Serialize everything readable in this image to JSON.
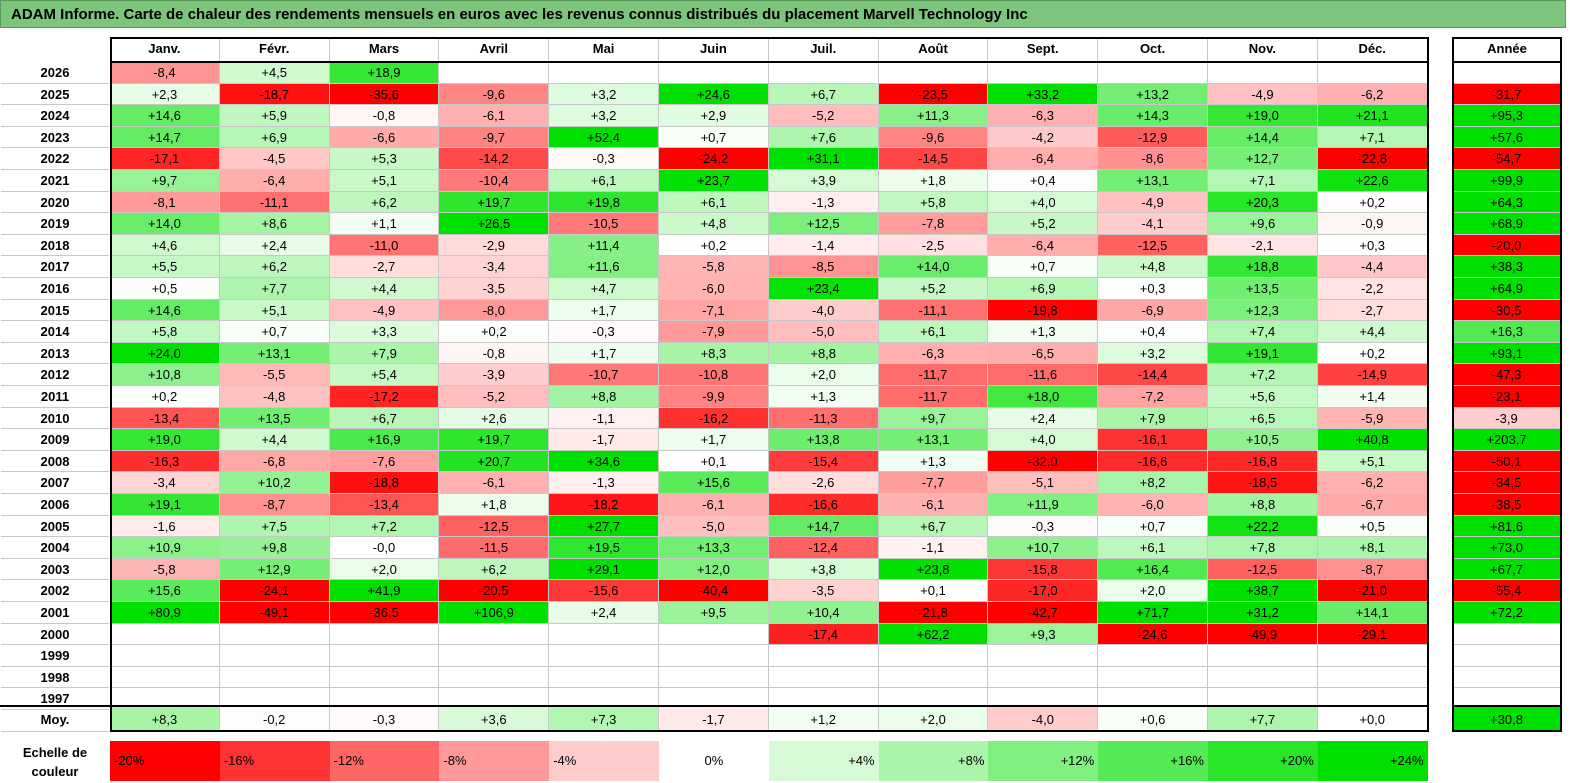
{
  "title": "ADAM Informe. Carte de chaleur des rendements mensuels en euros avec les revenus connus distribués du placement Marvell Technology Inc",
  "chart_data": {
    "type": "heatmap",
    "months": [
      "Janv.",
      "Févr.",
      "Mars",
      "Avril",
      "Mai",
      "Juin",
      "Juil.",
      "Août",
      "Sept.",
      "Oct.",
      "Nov.",
      "Déc."
    ],
    "year_header": "Année",
    "rows": [
      {
        "year": "2026",
        "values": [
          "-8,4",
          "+4,5",
          "+18,9",
          null,
          null,
          null,
          null,
          null,
          null,
          null,
          null,
          null
        ],
        "annual": null
      },
      {
        "year": "2025",
        "values": [
          "+2,3",
          "-18,7",
          "-35,6",
          "-9,6",
          "+3,2",
          "+24,6",
          "+6,7",
          "-23,5",
          "+33,2",
          "+13,2",
          "-4,9",
          "-6,2"
        ],
        "annual": "-31,7"
      },
      {
        "year": "2024",
        "values": [
          "+14,6",
          "+5,9",
          "-0,8",
          "-6,1",
          "+3,2",
          "+2,9",
          "-5,2",
          "+11,3",
          "-6,3",
          "+14,3",
          "+19,0",
          "+21,1"
        ],
        "annual": "+95,3"
      },
      {
        "year": "2023",
        "values": [
          "+14,7",
          "+6,9",
          "-6,6",
          "-9,7",
          "+52,4",
          "+0,7",
          "+7,6",
          "-9,6",
          "-4,2",
          "-12,9",
          "+14,4",
          "+7,1"
        ],
        "annual": "+57,6"
      },
      {
        "year": "2022",
        "values": [
          "-17,1",
          "-4,5",
          "+5,3",
          "-14,2",
          "-0,3",
          "-24,2",
          "+31,1",
          "-14,5",
          "-6,4",
          "-8,6",
          "+12,7",
          "-22,8"
        ],
        "annual": "-54,7"
      },
      {
        "year": "2021",
        "values": [
          "+9,7",
          "-6,4",
          "+5,1",
          "-10,4",
          "+6,1",
          "+23,7",
          "+3,9",
          "+1,8",
          "+0,4",
          "+13,1",
          "+7,1",
          "+22,6"
        ],
        "annual": "+99,9"
      },
      {
        "year": "2020",
        "values": [
          "-8,1",
          "-11,1",
          "+6,2",
          "+19,7",
          "+19,8",
          "+6,1",
          "-1,3",
          "+5,8",
          "+4,0",
          "-4,9",
          "+20,3",
          "+0,2"
        ],
        "annual": "+64,3"
      },
      {
        "year": "2019",
        "values": [
          "+14,0",
          "+8,6",
          "+1,1",
          "+26,5",
          "-10,5",
          "+4,8",
          "+12,5",
          "-7,8",
          "+5,2",
          "-4,1",
          "+9,6",
          "-0,9"
        ],
        "annual": "+68,9"
      },
      {
        "year": "2018",
        "values": [
          "+4,6",
          "+2,4",
          "-11,0",
          "-2,9",
          "+11,4",
          "+0,2",
          "-1,4",
          "-2,5",
          "-6,4",
          "-12,5",
          "-2,1",
          "+0,3"
        ],
        "annual": "-20,0"
      },
      {
        "year": "2017",
        "values": [
          "+5,5",
          "+6,2",
          "-2,7",
          "-3,4",
          "+11,6",
          "-5,8",
          "-8,5",
          "+14,0",
          "+0,7",
          "+4,8",
          "+18,8",
          "-4,4"
        ],
        "annual": "+38,3"
      },
      {
        "year": "2016",
        "values": [
          "+0,5",
          "+7,7",
          "+4,4",
          "-3,5",
          "+4,7",
          "-6,0",
          "+23,4",
          "+5,2",
          "+6,9",
          "+0,3",
          "+13,5",
          "-2,2"
        ],
        "annual": "+64,9"
      },
      {
        "year": "2015",
        "values": [
          "+14,6",
          "+5,1",
          "-4,9",
          "-8,0",
          "+1,7",
          "-7,1",
          "-4,0",
          "-11,1",
          "-19,8",
          "-6,9",
          "+12,3",
          "-2,7"
        ],
        "annual": "-30,5"
      },
      {
        "year": "2014",
        "values": [
          "+5,8",
          "+0,7",
          "+3,3",
          "+0,2",
          "-0,3",
          "-7,9",
          "-5,0",
          "+6,1",
          "+1,3",
          "+0,4",
          "+7,4",
          "+4,4"
        ],
        "annual": "+16,3"
      },
      {
        "year": "2013",
        "values": [
          "+24,0",
          "+13,1",
          "+7,9",
          "-0,8",
          "+1,7",
          "+8,3",
          "+8,8",
          "-6,3",
          "-6,5",
          "+3,2",
          "+19,1",
          "+0,2"
        ],
        "annual": "+93,1"
      },
      {
        "year": "2012",
        "values": [
          "+10,8",
          "-5,5",
          "+5,4",
          "-3,9",
          "-10,7",
          "-10,8",
          "+2,0",
          "-11,7",
          "-11,6",
          "-14,4",
          "+7,2",
          "-14,9"
        ],
        "annual": "-47,3"
      },
      {
        "year": "2011",
        "values": [
          "+0,2",
          "-4,8",
          "-17,2",
          "-5,2",
          "+8,8",
          "-9,9",
          "+1,3",
          "-11,7",
          "+18,0",
          "-7,2",
          "+5,6",
          "+1,4"
        ],
        "annual": "-23,1"
      },
      {
        "year": "2010",
        "values": [
          "-13,4",
          "+13,5",
          "+6,7",
          "+2,6",
          "-1,1",
          "-16,2",
          "-11,3",
          "+9,7",
          "+2,4",
          "+7,9",
          "+6,5",
          "-5,9"
        ],
        "annual": "-3,9"
      },
      {
        "year": "2009",
        "values": [
          "+19,0",
          "+4,4",
          "+16,9",
          "+19,7",
          "-1,7",
          "+1,7",
          "+13,8",
          "+13,1",
          "+4,0",
          "-16,1",
          "+10,5",
          "+40,8"
        ],
        "annual": "+203,7"
      },
      {
        "year": "2008",
        "values": [
          "-16,3",
          "-6,8",
          "-7,6",
          "+20,7",
          "+34,6",
          "+0,1",
          "-15,4",
          "+1,3",
          "-32,0",
          "-16,6",
          "-16,8",
          "+5,1"
        ],
        "annual": "-50,1"
      },
      {
        "year": "2007",
        "values": [
          "-3,4",
          "+10,2",
          "-18,8",
          "-6,1",
          "-1,3",
          "+15,6",
          "-2,6",
          "-7,7",
          "-5,1",
          "+8,2",
          "-18,5",
          "-6,2"
        ],
        "annual": "-34,5"
      },
      {
        "year": "2006",
        "values": [
          "+19,1",
          "-8,7",
          "-13,4",
          "+1,8",
          "-18,2",
          "-6,1",
          "-16,6",
          "-6,1",
          "+11,9",
          "-6,0",
          "+8,8",
          "-6,7"
        ],
        "annual": "-38,5"
      },
      {
        "year": "2005",
        "values": [
          "-1,6",
          "+7,5",
          "+7,2",
          "-12,5",
          "+27,7",
          "-5,0",
          "+14,7",
          "+6,7",
          "-0,3",
          "+0,7",
          "+22,2",
          "+0,5"
        ],
        "annual": "+81,6"
      },
      {
        "year": "2004",
        "values": [
          "+10,9",
          "+9,8",
          "-0,0",
          "-11,5",
          "+19,5",
          "+13,3",
          "-12,4",
          "-1,1",
          "+10,7",
          "+6,1",
          "+7,8",
          "+8,1"
        ],
        "annual": "+73,0"
      },
      {
        "year": "2003",
        "values": [
          "-5,8",
          "+12,9",
          "+2,0",
          "+6,2",
          "+29,1",
          "+12,0",
          "+3,8",
          "+23,8",
          "-15,8",
          "+16,4",
          "-12,5",
          "-8,7"
        ],
        "annual": "+67,7"
      },
      {
        "year": "2002",
        "values": [
          "+15,6",
          "-24,1",
          "+41,9",
          "-20,5",
          "-15,6",
          "-40,4",
          "-3,5",
          "+0,1",
          "-17,0",
          "+2,0",
          "+38,7",
          "-21,0"
        ],
        "annual": "-55,4"
      },
      {
        "year": "2001",
        "values": [
          "+80,9",
          "-49,1",
          "-36,5",
          "+106,9",
          "+2,4",
          "+9,5",
          "+10,4",
          "-21,8",
          "-42,7",
          "+71,7",
          "+31,2",
          "+14,1"
        ],
        "annual": "+72,2"
      },
      {
        "year": "2000",
        "values": [
          null,
          null,
          null,
          null,
          null,
          null,
          "-17,4",
          "+62,2",
          "+9,3",
          "-24,6",
          "-49,9",
          "-29,1"
        ],
        "annual": null
      },
      {
        "year": "1999",
        "values": [
          null,
          null,
          null,
          null,
          null,
          null,
          null,
          null,
          null,
          null,
          null,
          null
        ],
        "annual": null
      },
      {
        "year": "1998",
        "values": [
          null,
          null,
          null,
          null,
          null,
          null,
          null,
          null,
          null,
          null,
          null,
          null
        ],
        "annual": null
      },
      {
        "year": "1997",
        "values": [
          null,
          null,
          null,
          null,
          null,
          null,
          null,
          null,
          null,
          null,
          null,
          null
        ],
        "annual": null
      }
    ],
    "average": {
      "label": "Moy.",
      "values": [
        "+8,3",
        "-0,2",
        "-0,3",
        "+3,6",
        "+7,3",
        "-1,7",
        "+1,2",
        "+2,0",
        "-4,0",
        "+0,6",
        "+7,7",
        "+0,0"
      ],
      "annual": "+30,8"
    },
    "scale": {
      "label": "Echelle de couleur",
      "steps": [
        {
          "text": "-20%",
          "value": -20,
          "align": "left"
        },
        {
          "text": "-16%",
          "value": -16,
          "align": "left"
        },
        {
          "text": "-12%",
          "value": -12,
          "align": "left"
        },
        {
          "text": "-8%",
          "value": -8,
          "align": "left"
        },
        {
          "text": "-4%",
          "value": -4,
          "align": "left"
        },
        {
          "text": "0%",
          "value": 0,
          "align": "center"
        },
        {
          "text": "+4%",
          "value": 4,
          "align": "right"
        },
        {
          "text": "+8%",
          "value": 8,
          "align": "right"
        },
        {
          "text": "+12%",
          "value": 12,
          "align": "right"
        },
        {
          "text": "+16%",
          "value": 16,
          "align": "right"
        },
        {
          "text": "+20%",
          "value": 20,
          "align": "right"
        },
        {
          "text": "+24%",
          "value": 24,
          "align": "right"
        }
      ]
    },
    "colors": {
      "negative": "#ff0000",
      "neutral": "#ffffff",
      "positive": "#00e000",
      "title_bg": "#7dc47d"
    }
  }
}
